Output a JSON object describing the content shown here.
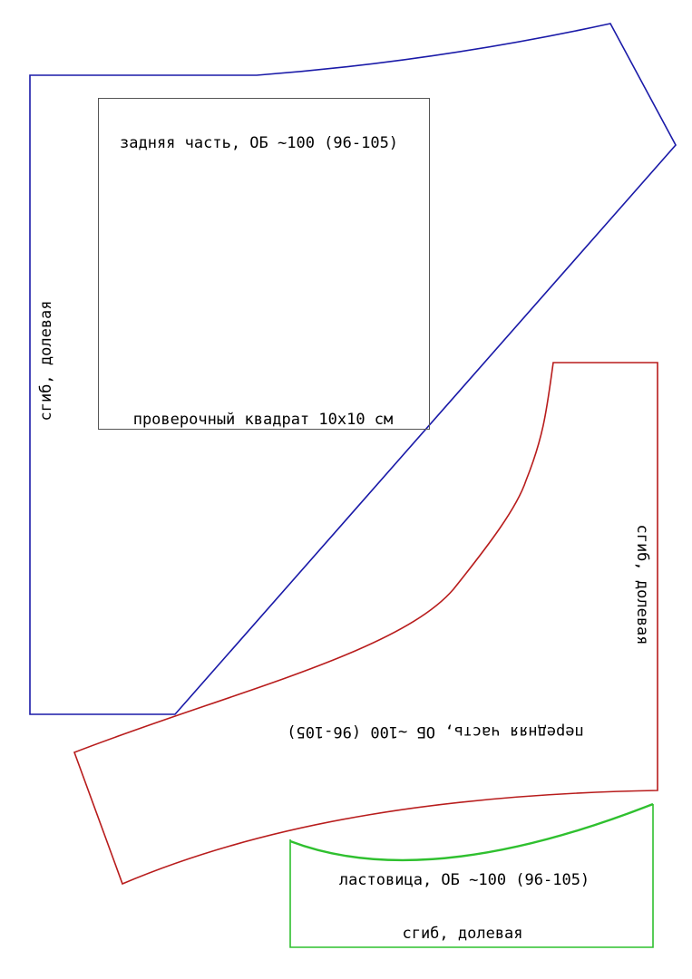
{
  "back_piece": {
    "title": "задняя часть, ОБ ~100 (96-105)",
    "fold_label": "сгиб, долевая"
  },
  "check_square": {
    "label": "проверочный квадрат 10x10 см"
  },
  "front_piece": {
    "title": "передняя часть, ОБ ~100 (96-105)",
    "fold_label": "сгиб, долевая"
  },
  "gusset": {
    "title": "ластовица, ОБ ~100 (96-105)",
    "fold_label": "сгиб, долевая"
  }
}
